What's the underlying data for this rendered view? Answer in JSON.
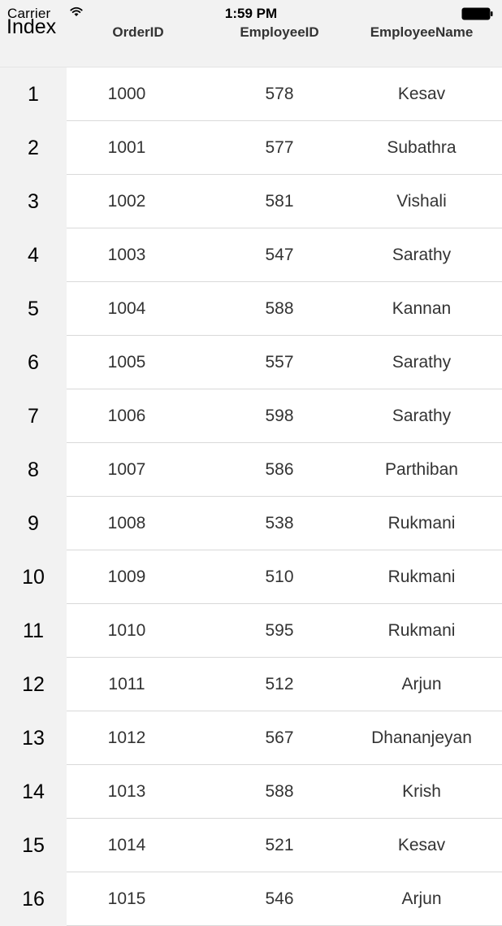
{
  "status_bar": {
    "carrier": "Carrier",
    "time": "1:59 PM"
  },
  "grid": {
    "index_header": "Index",
    "columns": [
      "OrderID",
      "EmployeeID",
      "EmployeeName"
    ],
    "rows": [
      {
        "index": "1",
        "order_id": "1000",
        "employee_id": "578",
        "employee_name": "Kesav"
      },
      {
        "index": "2",
        "order_id": "1001",
        "employee_id": "577",
        "employee_name": "Subathra"
      },
      {
        "index": "3",
        "order_id": "1002",
        "employee_id": "581",
        "employee_name": "Vishali"
      },
      {
        "index": "4",
        "order_id": "1003",
        "employee_id": "547",
        "employee_name": "Sarathy"
      },
      {
        "index": "5",
        "order_id": "1004",
        "employee_id": "588",
        "employee_name": "Kannan"
      },
      {
        "index": "6",
        "order_id": "1005",
        "employee_id": "557",
        "employee_name": "Sarathy"
      },
      {
        "index": "7",
        "order_id": "1006",
        "employee_id": "598",
        "employee_name": "Sarathy"
      },
      {
        "index": "8",
        "order_id": "1007",
        "employee_id": "586",
        "employee_name": "Parthiban"
      },
      {
        "index": "9",
        "order_id": "1008",
        "employee_id": "538",
        "employee_name": "Rukmani"
      },
      {
        "index": "10",
        "order_id": "1009",
        "employee_id": "510",
        "employee_name": "Rukmani"
      },
      {
        "index": "11",
        "order_id": "1010",
        "employee_id": "595",
        "employee_name": "Rukmani"
      },
      {
        "index": "12",
        "order_id": "1011",
        "employee_id": "512",
        "employee_name": "Arjun"
      },
      {
        "index": "13",
        "order_id": "1012",
        "employee_id": "567",
        "employee_name": "Dhananjeyan"
      },
      {
        "index": "14",
        "order_id": "1013",
        "employee_id": "588",
        "employee_name": "Krish"
      },
      {
        "index": "15",
        "order_id": "1014",
        "employee_id": "521",
        "employee_name": "Kesav"
      },
      {
        "index": "16",
        "order_id": "1015",
        "employee_id": "546",
        "employee_name": "Arjun"
      }
    ]
  }
}
